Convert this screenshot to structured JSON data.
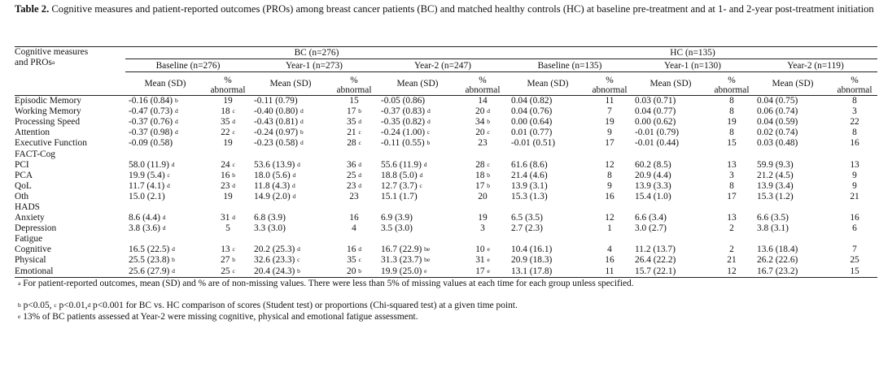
{
  "caption": {
    "label": "Table 2.",
    "text": " Cognitive measures and patient-reported outcomes (PROs) among breast cancer patients (BC) and matched healthy controls (HC) at baseline pre-treatment and at 1- and 2-year post-treatment initiation"
  },
  "header": {
    "row_label_line1": "Cognitive measures",
    "row_label_line2": "and PROs",
    "row_label_sup": "a",
    "group_bc": "BC (n=276)",
    "group_hc": "HC (n=135)",
    "sub": [
      "Baseline (n=276)",
      "Year-1 (n=273)",
      "Year-2 (n=247)",
      "Baseline (n=135)",
      "Year-1 (n=130)",
      "Year-2 (n=119)"
    ],
    "mean_label": "Mean (SD)",
    "pct_line1": "%",
    "pct_line2": "abnormal"
  },
  "rows": [
    {
      "label": "Episodic Memory",
      "cells": [
        [
          "-0.16 (0.84)",
          "b"
        ],
        [
          "19",
          ""
        ],
        [
          "-0.11 (0.79)",
          ""
        ],
        [
          "15",
          ""
        ],
        [
          "-0.05 (0.86)",
          ""
        ],
        [
          "14",
          ""
        ],
        [
          "0.04 (0.82)",
          ""
        ],
        [
          "11",
          ""
        ],
        [
          "0.03 (0.71)",
          ""
        ],
        [
          "8",
          ""
        ],
        [
          "0.04 (0.75)",
          ""
        ],
        [
          "8",
          ""
        ]
      ]
    },
    {
      "label": "Working Memory",
      "cells": [
        [
          "-0.47 (0.73)",
          "d"
        ],
        [
          "18",
          "c"
        ],
        [
          "-0.40 (0.80)",
          "d"
        ],
        [
          "17",
          "b"
        ],
        [
          "-0.37 (0.83)",
          "d"
        ],
        [
          "20",
          "d"
        ],
        [
          "0.04 (0.76)",
          ""
        ],
        [
          "7",
          ""
        ],
        [
          "0.04 (0.77)",
          ""
        ],
        [
          "8",
          ""
        ],
        [
          "0.06 (0.74)",
          ""
        ],
        [
          "3",
          ""
        ]
      ]
    },
    {
      "label": "Processing Speed",
      "cells": [
        [
          "-0.37 (0.76)",
          "d"
        ],
        [
          "35",
          "d"
        ],
        [
          "-0.43 (0.81)",
          "d"
        ],
        [
          "35",
          "d"
        ],
        [
          "-0.35 (0.82)",
          "d"
        ],
        [
          "34",
          "b"
        ],
        [
          "0.00 (0.64)",
          ""
        ],
        [
          "19",
          ""
        ],
        [
          "0.00 (0.62)",
          ""
        ],
        [
          "19",
          ""
        ],
        [
          "0.04 (0.59)",
          ""
        ],
        [
          "22",
          ""
        ]
      ]
    },
    {
      "label": "Attention",
      "cells": [
        [
          "-0.37 (0.98)",
          "d"
        ],
        [
          "22",
          "c"
        ],
        [
          "-0.24 (0.97)",
          "b"
        ],
        [
          "21",
          "c"
        ],
        [
          "-0.24 (1.00)",
          "c"
        ],
        [
          "20",
          "c"
        ],
        [
          "0.01 (0.77)",
          ""
        ],
        [
          "9",
          ""
        ],
        [
          "-0.01 (0.79)",
          ""
        ],
        [
          "8",
          ""
        ],
        [
          "0.02 (0.74)",
          ""
        ],
        [
          "8",
          ""
        ]
      ]
    },
    {
      "label": "Executive Function",
      "cells": [
        [
          "-0.09 (0.58)",
          ""
        ],
        [
          "19",
          ""
        ],
        [
          "-0.23 (0.58)",
          "d"
        ],
        [
          "28",
          "c"
        ],
        [
          "-0.11 (0.55)",
          "b"
        ],
        [
          "23",
          ""
        ],
        [
          "-0.01 (0.51)",
          ""
        ],
        [
          "17",
          ""
        ],
        [
          "-0.01 (0.44)",
          ""
        ],
        [
          "15",
          ""
        ],
        [
          "0.03 (0.48)",
          ""
        ],
        [
          "16",
          ""
        ]
      ]
    },
    {
      "section": "FACT-Cog"
    },
    {
      "label": "PCI",
      "cells": [
        [
          "58.0 (11.9)",
          "d"
        ],
        [
          "24",
          "c"
        ],
        [
          "53.6 (13.9)",
          "d"
        ],
        [
          "36",
          "d"
        ],
        [
          "55.6 (11.9)",
          "d"
        ],
        [
          "28",
          "c"
        ],
        [
          "61.6 (8.6)",
          ""
        ],
        [
          "12",
          ""
        ],
        [
          "60.2 (8.5)",
          ""
        ],
        [
          "13",
          ""
        ],
        [
          "59.9 (9.3)",
          ""
        ],
        [
          "13",
          ""
        ]
      ]
    },
    {
      "label": "PCA",
      "cells": [
        [
          "19.9 (5.4)",
          "c"
        ],
        [
          "16",
          "b"
        ],
        [
          "18.0 (5.6)",
          "d"
        ],
        [
          "25",
          "d"
        ],
        [
          "18.8 (5.0)",
          "d"
        ],
        [
          "18",
          "b"
        ],
        [
          "21.4 (4.6)",
          ""
        ],
        [
          "8",
          ""
        ],
        [
          "20.9 (4.4)",
          ""
        ],
        [
          "3",
          ""
        ],
        [
          "21.2 (4.5)",
          ""
        ],
        [
          "9",
          ""
        ]
      ]
    },
    {
      "label": "QoL",
      "cells": [
        [
          "11.7 (4.1)",
          "d"
        ],
        [
          "23",
          "d"
        ],
        [
          "11.8 (4.3)",
          "d"
        ],
        [
          "23",
          "d"
        ],
        [
          "12.7 (3.7)",
          "c"
        ],
        [
          "17",
          "b"
        ],
        [
          "13.9 (3.1)",
          ""
        ],
        [
          "9",
          ""
        ],
        [
          "13.9 (3.3)",
          ""
        ],
        [
          "8",
          ""
        ],
        [
          "13.9 (3.4)",
          ""
        ],
        [
          "9",
          ""
        ]
      ]
    },
    {
      "label": "Oth",
      "cells": [
        [
          "15.0 (2.1)",
          ""
        ],
        [
          "19",
          ""
        ],
        [
          "14.9 (2.0)",
          "d"
        ],
        [
          "23",
          ""
        ],
        [
          "15.1 (1.7)",
          ""
        ],
        [
          "20",
          ""
        ],
        [
          "15.3 (1.3)",
          ""
        ],
        [
          "16",
          ""
        ],
        [
          "15.4 (1.0)",
          ""
        ],
        [
          "17",
          ""
        ],
        [
          "15.3 (1.2)",
          ""
        ],
        [
          "21",
          ""
        ]
      ]
    },
    {
      "section": "HADS"
    },
    {
      "label": "Anxiety",
      "cells": [
        [
          "8.6 (4.4)",
          "d"
        ],
        [
          "31",
          "d"
        ],
        [
          "6.8 (3.9)",
          ""
        ],
        [
          "16",
          ""
        ],
        [
          "6.9 (3.9)",
          ""
        ],
        [
          "19",
          ""
        ],
        [
          "6.5 (3.5)",
          ""
        ],
        [
          "12",
          ""
        ],
        [
          "6.6 (3.4)",
          ""
        ],
        [
          "13",
          ""
        ],
        [
          "6.6 (3.5)",
          ""
        ],
        [
          "16",
          ""
        ]
      ]
    },
    {
      "label": "Depression",
      "cells": [
        [
          "3.8 (3.6)",
          "d"
        ],
        [
          "5",
          ""
        ],
        [
          "3.3 (3.0)",
          ""
        ],
        [
          "4",
          ""
        ],
        [
          "3.5 (3.0)",
          ""
        ],
        [
          "3",
          ""
        ],
        [
          "2.7 (2.3)",
          ""
        ],
        [
          "1",
          ""
        ],
        [
          "3.0 (2.7)",
          ""
        ],
        [
          "2",
          ""
        ],
        [
          "3.8 (3.1)",
          ""
        ],
        [
          "6",
          ""
        ]
      ]
    },
    {
      "section": "Fatigue"
    },
    {
      "label": "Cognitive",
      "cells": [
        [
          "16.5 (22.5)",
          "d"
        ],
        [
          "13",
          "c"
        ],
        [
          "20.2 (25.3)",
          "d"
        ],
        [
          "16",
          "d"
        ],
        [
          "16.7 (22.9)",
          "be"
        ],
        [
          "10",
          "e"
        ],
        [
          "10.4 (16.1)",
          ""
        ],
        [
          "4",
          ""
        ],
        [
          "11.2 (13.7)",
          ""
        ],
        [
          "2",
          ""
        ],
        [
          "13.6 (18.4)",
          ""
        ],
        [
          "7",
          ""
        ]
      ]
    },
    {
      "label": "Physical",
      "cells": [
        [
          "25.5 (23.8)",
          "b"
        ],
        [
          "27",
          "b"
        ],
        [
          "32.6 (23.3)",
          "c"
        ],
        [
          "35",
          "c"
        ],
        [
          "31.3 (23.7)",
          "be"
        ],
        [
          "31",
          "e"
        ],
        [
          "20.9 (18.3)",
          ""
        ],
        [
          "16",
          ""
        ],
        [
          "26.4 (22.2)",
          ""
        ],
        [
          "21",
          ""
        ],
        [
          "26.2 (22.6)",
          ""
        ],
        [
          "25",
          ""
        ]
      ]
    },
    {
      "label": "Emotional",
      "cells": [
        [
          "25.6 (27.9)",
          "d"
        ],
        [
          "25",
          "c"
        ],
        [
          "20.4 (24.3)",
          "b"
        ],
        [
          "20",
          "b"
        ],
        [
          "19.9 (25.0)",
          "e"
        ],
        [
          "17",
          "e"
        ],
        [
          "13.1 (17.8)",
          ""
        ],
        [
          "11",
          ""
        ],
        [
          "15.7 (22.1)",
          ""
        ],
        [
          "12",
          ""
        ],
        [
          "16.7 (23.2)",
          ""
        ],
        [
          "15",
          ""
        ]
      ]
    }
  ],
  "notes": {
    "a_sup": "a",
    "a": " For patient-reported outcomes, mean (SD) and % are of non-missing values. There were less than 5% of missing values at each time for each group unless specified.",
    "b_sup": "b",
    "b_mid1": " p<0.05, ",
    "c_sup": "c",
    "b_mid2": " p<0.01,",
    "d_sup": "d",
    "b_rest": " p<0.001 for BC vs. HC comparison of scores (Student test) or proportions (Chi-squared test) at a given time point.",
    "e_sup": "e",
    "e": " 13% of BC patients assessed at Year-2 were missing cognitive, physical and emotional fatigue assessment."
  }
}
